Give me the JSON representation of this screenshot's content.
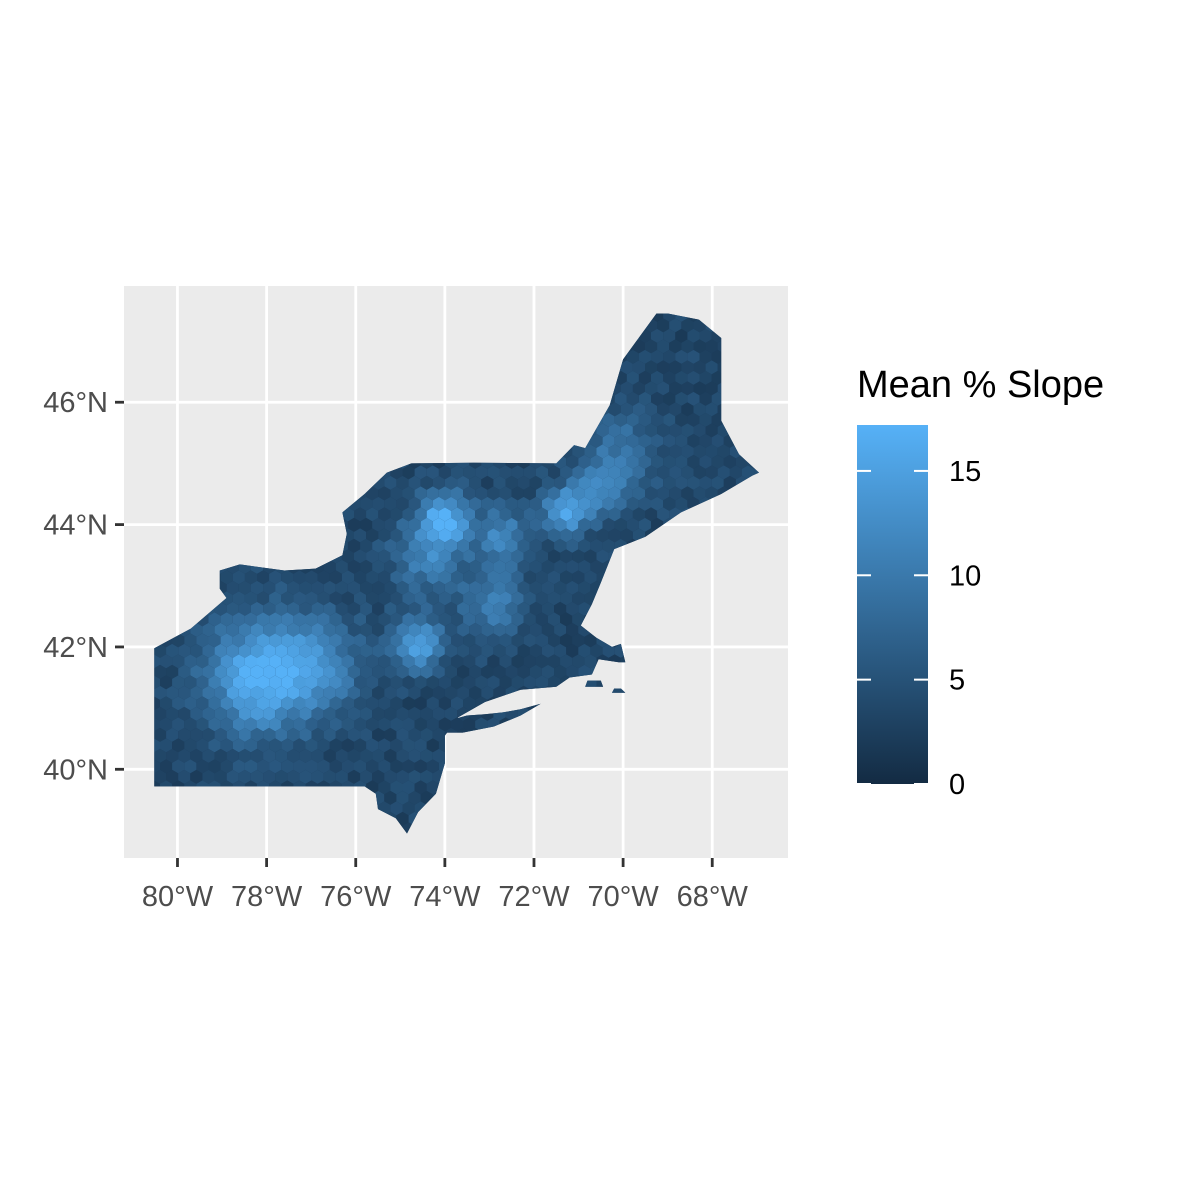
{
  "map": {
    "type": "hexbin-choropleth",
    "region": "Northeastern United States",
    "panel_background": "#ebebeb",
    "grid_color": "#ffffff",
    "x_axis": {
      "ticks": [
        {
          "value": -80,
          "label": "80°W"
        },
        {
          "value": -78,
          "label": "78°W"
        },
        {
          "value": -76,
          "label": "76°W"
        },
        {
          "value": -74,
          "label": "74°W"
        },
        {
          "value": -72,
          "label": "72°W"
        },
        {
          "value": -70,
          "label": "70°W"
        },
        {
          "value": -68,
          "label": "68°W"
        }
      ],
      "range": [
        -81.2,
        -66.3
      ]
    },
    "y_axis": {
      "ticks": [
        {
          "value": 40,
          "label": "40°N"
        },
        {
          "value": 42,
          "label": "42°N"
        },
        {
          "value": 44,
          "label": "44°N"
        },
        {
          "value": 46,
          "label": "46°N"
        }
      ],
      "range": [
        38.55,
        47.9
      ]
    },
    "legend": {
      "title": "Mean % Slope",
      "position": "right",
      "min": 0,
      "max": 17.2,
      "low_color": "#132b43",
      "high_color": "#56b1f7",
      "breaks": [
        {
          "value": 0,
          "label": "0"
        },
        {
          "value": 5,
          "label": "5"
        },
        {
          "value": 10,
          "label": "10"
        },
        {
          "value": 15,
          "label": "15"
        }
      ]
    },
    "hotspots": [
      {
        "lon": -78.2,
        "lat": 41.5,
        "slope": 16.5,
        "spread": 1.2
      },
      {
        "lon": -76.8,
        "lat": 41.7,
        "slope": 11.0,
        "spread": 1.0
      },
      {
        "lon": -74.6,
        "lat": 42.05,
        "slope": 15.5,
        "spread": 0.55
      },
      {
        "lon": -74.0,
        "lat": 44.1,
        "slope": 16.0,
        "spread": 0.55
      },
      {
        "lon": -74.4,
        "lat": 43.5,
        "slope": 11.0,
        "spread": 0.8
      },
      {
        "lon": -71.3,
        "lat": 44.2,
        "slope": 15.5,
        "spread": 0.5
      },
      {
        "lon": -72.7,
        "lat": 43.8,
        "slope": 12.0,
        "spread": 0.6
      },
      {
        "lon": -72.9,
        "lat": 42.7,
        "slope": 11.0,
        "spread": 0.7
      },
      {
        "lon": -70.0,
        "lat": 45.2,
        "slope": 9.0,
        "spread": 0.9
      },
      {
        "lon": -70.5,
        "lat": 44.6,
        "slope": 10.0,
        "spread": 0.6
      }
    ],
    "base_slope": 3.5,
    "mainland_outline": [
      [
        -80.52,
        39.72
      ],
      [
        -75.8,
        39.72
      ],
      [
        -75.55,
        39.6
      ],
      [
        -75.5,
        39.35
      ],
      [
        -75.1,
        39.2
      ],
      [
        -74.85,
        38.95
      ],
      [
        -74.6,
        39.3
      ],
      [
        -74.2,
        39.6
      ],
      [
        -74.0,
        40.1
      ],
      [
        -74.0,
        40.55
      ],
      [
        -73.7,
        40.85
      ],
      [
        -73.1,
        41.1
      ],
      [
        -72.3,
        41.3
      ],
      [
        -71.5,
        41.35
      ],
      [
        -71.2,
        41.5
      ],
      [
        -70.7,
        41.55
      ],
      [
        -70.55,
        41.8
      ],
      [
        -70.1,
        41.75
      ],
      [
        -69.95,
        41.75
      ],
      [
        -70.05,
        42.05
      ],
      [
        -70.25,
        42.0
      ],
      [
        -70.6,
        42.15
      ],
      [
        -70.95,
        42.35
      ],
      [
        -70.7,
        42.7
      ],
      [
        -70.5,
        43.05
      ],
      [
        -70.2,
        43.6
      ],
      [
        -69.5,
        43.8
      ],
      [
        -68.7,
        44.2
      ],
      [
        -67.8,
        44.5
      ],
      [
        -67.1,
        44.8
      ],
      [
        -66.95,
        44.85
      ],
      [
        -67.4,
        45.15
      ],
      [
        -67.8,
        45.7
      ],
      [
        -67.8,
        47.05
      ],
      [
        -68.3,
        47.35
      ],
      [
        -69.0,
        47.45
      ],
      [
        -69.25,
        47.45
      ],
      [
        -70.0,
        46.7
      ],
      [
        -70.3,
        45.95
      ],
      [
        -70.85,
        45.25
      ],
      [
        -71.1,
        45.3
      ],
      [
        -71.5,
        45.0
      ],
      [
        -73.35,
        45.01
      ],
      [
        -74.75,
        45.0
      ],
      [
        -75.3,
        44.85
      ],
      [
        -75.8,
        44.5
      ],
      [
        -76.3,
        44.2
      ],
      [
        -76.2,
        43.85
      ],
      [
        -76.3,
        43.5
      ],
      [
        -76.9,
        43.28
      ],
      [
        -77.6,
        43.25
      ],
      [
        -78.6,
        43.35
      ],
      [
        -79.05,
        43.25
      ],
      [
        -79.05,
        42.95
      ],
      [
        -78.9,
        42.8
      ],
      [
        -79.7,
        42.3
      ],
      [
        -80.52,
        41.98
      ]
    ],
    "long_island_outline": [
      [
        -74.0,
        40.6
      ],
      [
        -73.6,
        40.6
      ],
      [
        -72.9,
        40.7
      ],
      [
        -72.3,
        40.88
      ],
      [
        -71.85,
        41.07
      ],
      [
        -72.3,
        40.98
      ],
      [
        -72.7,
        40.93
      ],
      [
        -73.1,
        40.9
      ],
      [
        -73.5,
        40.88
      ],
      [
        -73.9,
        40.8
      ]
    ],
    "marthas_vineyard_outline": [
      [
        -70.85,
        41.35
      ],
      [
        -70.45,
        41.35
      ],
      [
        -70.5,
        41.45
      ],
      [
        -70.8,
        41.45
      ]
    ],
    "nantucket_outline": [
      [
        -70.25,
        41.25
      ],
      [
        -69.95,
        41.25
      ],
      [
        -70.05,
        41.32
      ],
      [
        -70.2,
        41.32
      ]
    ]
  }
}
